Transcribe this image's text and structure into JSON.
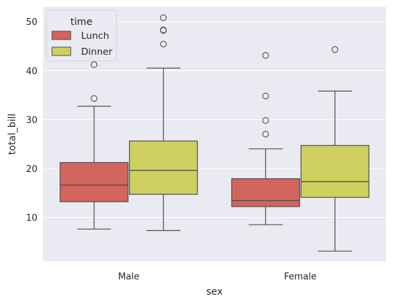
{
  "chart_data": {
    "type": "box",
    "xlabel": "sex",
    "ylabel": "total_bill",
    "categories": [
      "Male",
      "Female"
    ],
    "yticks": [
      10,
      20,
      30,
      40,
      50
    ],
    "ylim": [
      1,
      53
    ],
    "grid": true,
    "legend": {
      "title": "time",
      "position": "top-left"
    },
    "series": [
      {
        "name": "Lunch",
        "color": "#d2655c",
        "boxes": [
          {
            "category": "Male",
            "whisker_low": 7.6,
            "q1": 13.2,
            "median": 16.6,
            "q3": 21.2,
            "whisker_high": 32.7,
            "outliers": [
              34.3,
              41.2
            ]
          },
          {
            "category": "Female",
            "whisker_low": 8.5,
            "q1": 12.2,
            "median": 13.4,
            "q3": 17.9,
            "whisker_high": 24.0,
            "outliers": [
              27.0,
              29.8,
              34.8,
              43.1
            ]
          }
        ]
      },
      {
        "name": "Dinner",
        "color": "#cdd05e",
        "boxes": [
          {
            "category": "Male",
            "whisker_low": 7.3,
            "q1": 14.7,
            "median": 19.6,
            "q3": 25.6,
            "whisker_high": 40.5,
            "outliers": [
              45.4,
              48.2,
              48.3,
              50.8
            ]
          },
          {
            "category": "Female",
            "whisker_low": 3.1,
            "q1": 14.1,
            "median": 17.3,
            "q3": 24.7,
            "whisker_high": 35.8,
            "outliers": [
              44.3
            ]
          }
        ]
      }
    ]
  }
}
